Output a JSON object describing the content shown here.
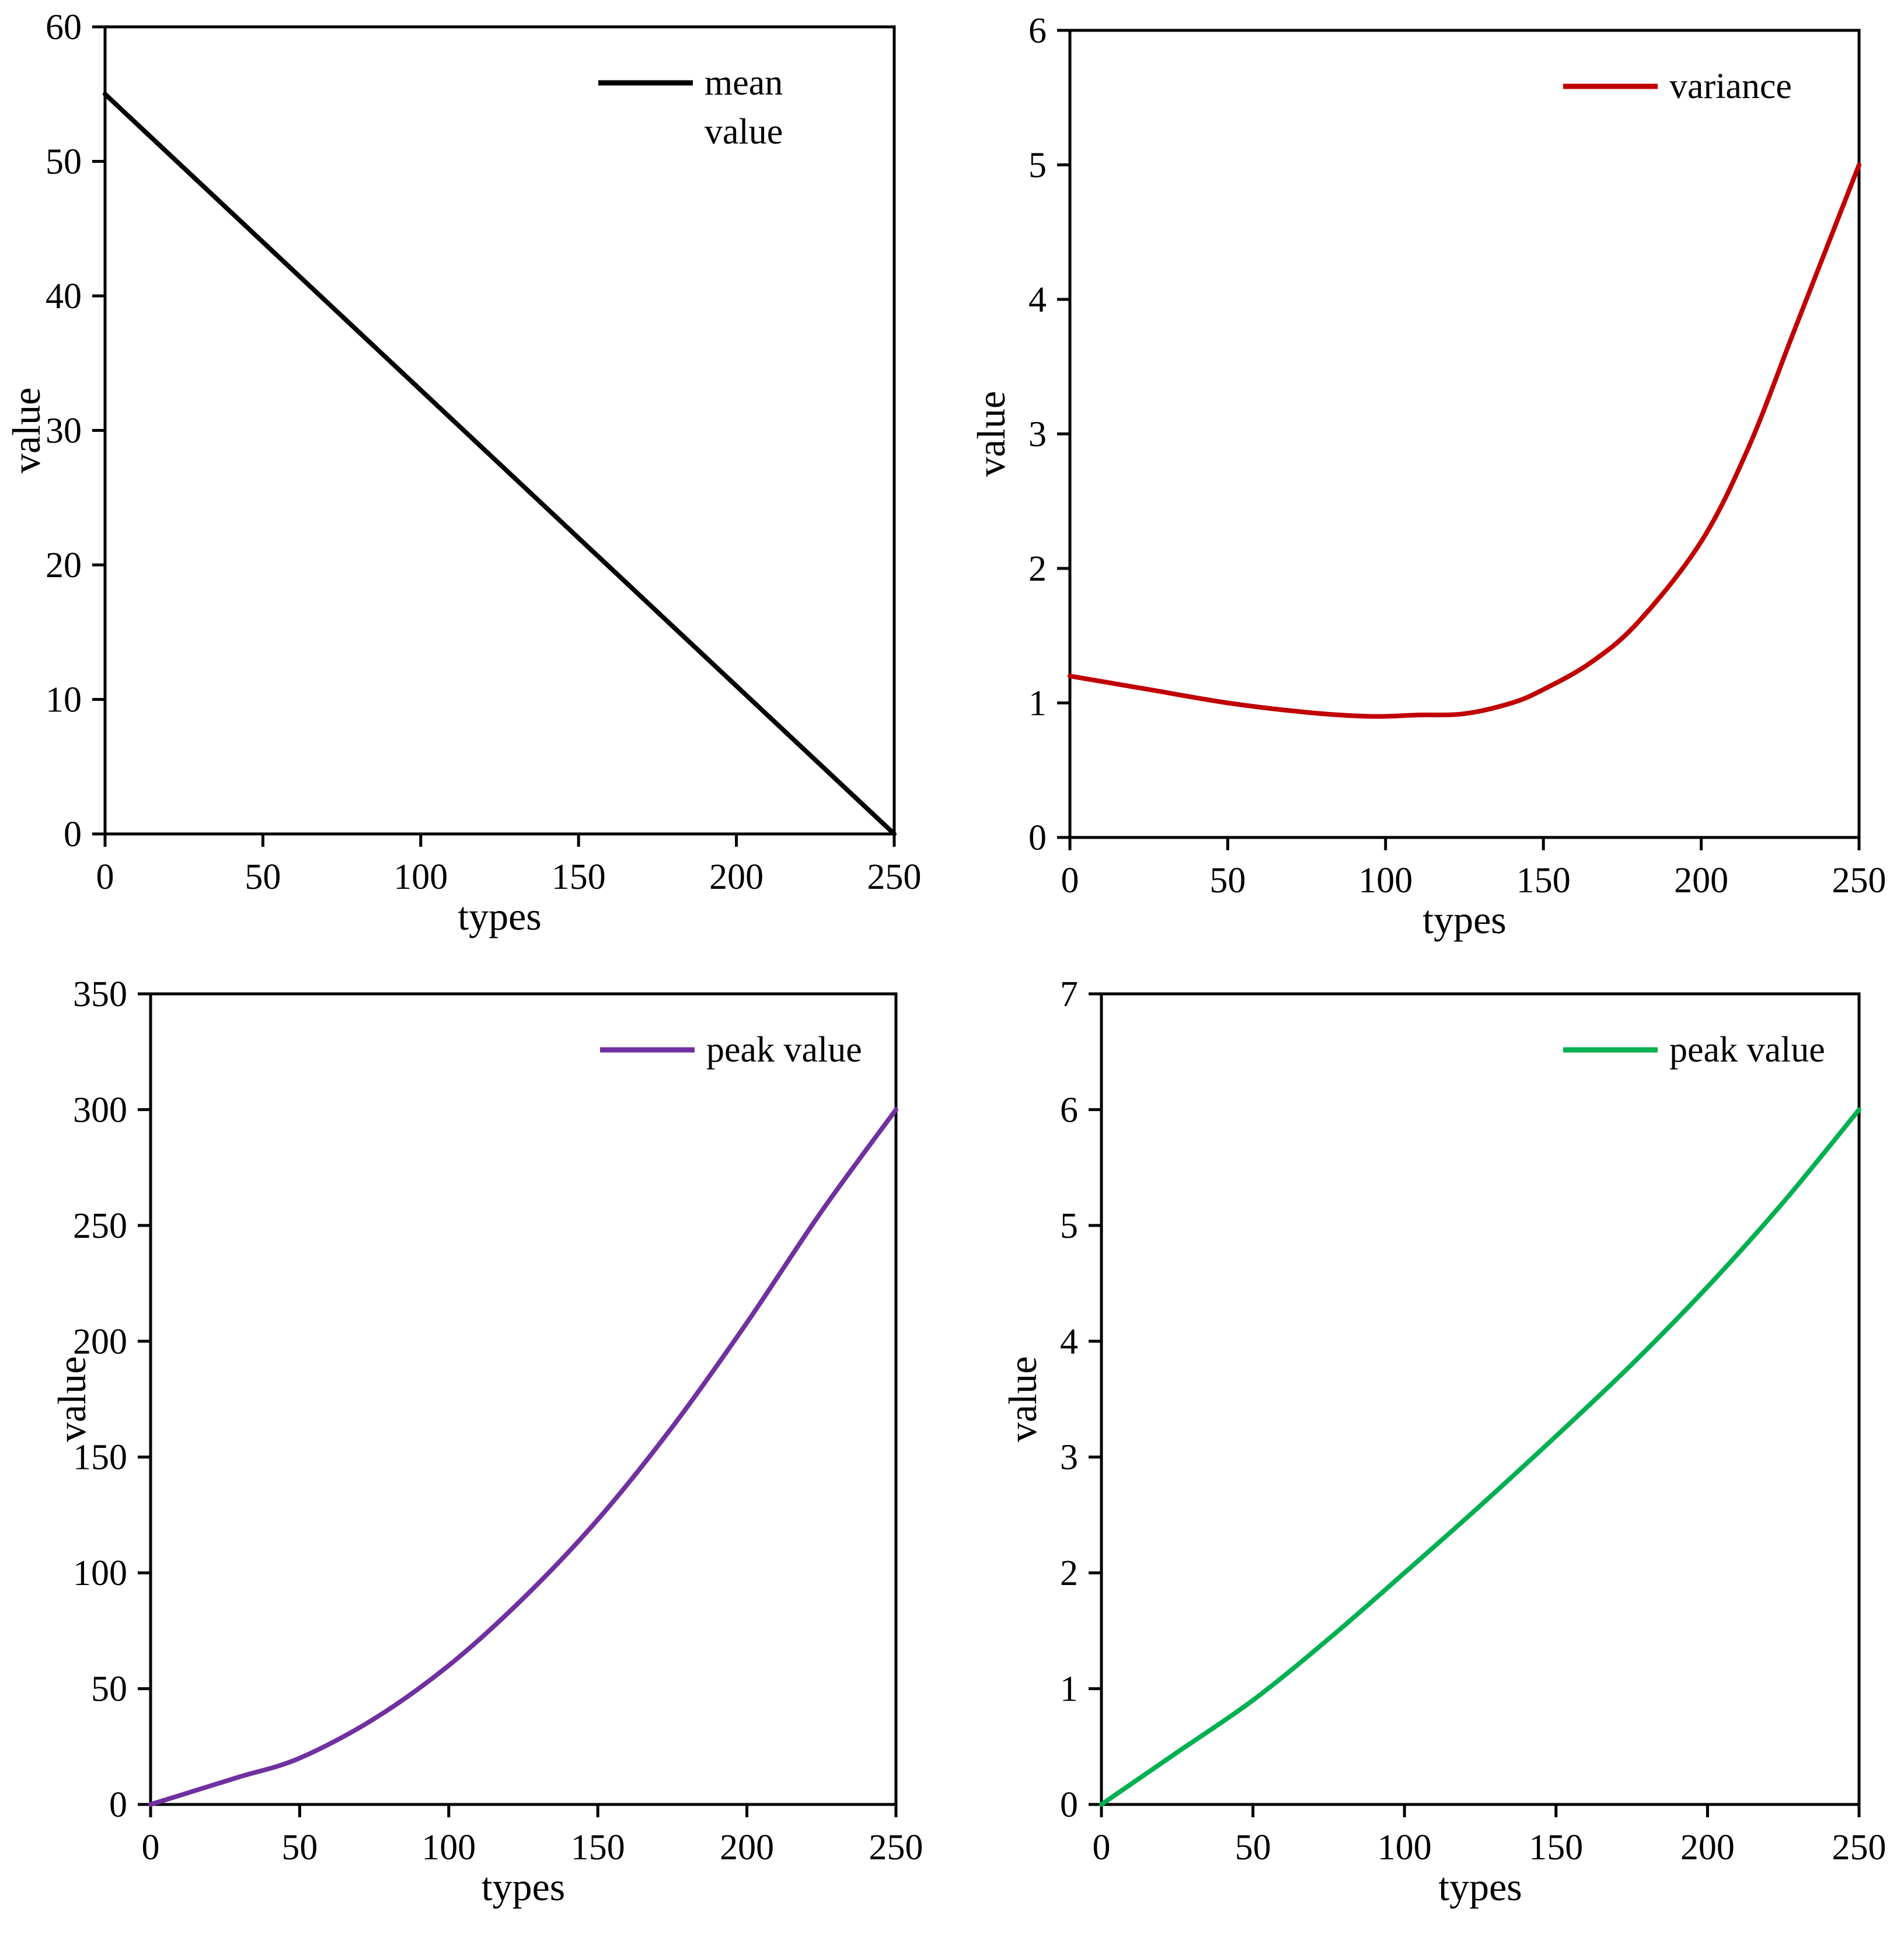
{
  "chart_data": [
    {
      "type": "line",
      "title": "",
      "xlabel": "types",
      "ylabel": "value",
      "xlim": [
        0,
        250
      ],
      "ylim": [
        0,
        60
      ],
      "xticks": [
        0,
        50,
        100,
        150,
        200,
        250
      ],
      "yticks": [
        0,
        10,
        20,
        30,
        40,
        50,
        60
      ],
      "grid": false,
      "legend_position": "top-right",
      "series": [
        {
          "name": "mean value",
          "legend_lines": [
            "mean",
            "value"
          ],
          "color": "#000000",
          "x": [
            0,
            25,
            50,
            75,
            100,
            125,
            150,
            175,
            200,
            225,
            250
          ],
          "y": [
            55,
            49.5,
            44,
            38.5,
            33,
            27.5,
            22,
            16.5,
            11,
            5.5,
            0
          ]
        }
      ]
    },
    {
      "type": "line",
      "title": "",
      "xlabel": "types",
      "ylabel": "value",
      "xlim": [
        0,
        250
      ],
      "ylim": [
        0,
        6
      ],
      "xticks": [
        0,
        50,
        100,
        150,
        200,
        250
      ],
      "yticks": [
        0,
        1,
        2,
        3,
        4,
        5,
        6
      ],
      "grid": false,
      "legend_position": "top-right",
      "series": [
        {
          "name": "variance",
          "legend_lines": [
            "variance"
          ],
          "color": "#c00000",
          "x": [
            0,
            25,
            50,
            75,
            95,
            110,
            125,
            140,
            150,
            165,
            180,
            200,
            215,
            230,
            250
          ],
          "y": [
            1.2,
            1.1,
            1.0,
            0.93,
            0.9,
            0.91,
            0.92,
            1.0,
            1.1,
            1.3,
            1.6,
            2.2,
            2.9,
            3.8,
            5.0
          ]
        }
      ]
    },
    {
      "type": "line",
      "title": "",
      "xlabel": "types",
      "ylabel": "value",
      "xlim": [
        0,
        250
      ],
      "ylim": [
        0,
        350
      ],
      "xticks": [
        0,
        50,
        100,
        150,
        200,
        250
      ],
      "yticks": [
        0,
        50,
        100,
        150,
        200,
        250,
        300,
        350
      ],
      "grid": false,
      "legend_position": "top-right",
      "series": [
        {
          "name": "peak value",
          "legend_lines": [
            "peak value"
          ],
          "color": "#7030a0",
          "x": [
            0,
            15,
            30,
            50,
            75,
            100,
            125,
            150,
            175,
            200,
            225,
            250
          ],
          "y": [
            0,
            6,
            12,
            20,
            37,
            60,
            89,
            123,
            163,
            208,
            256,
            300
          ]
        }
      ]
    },
    {
      "type": "line",
      "title": "",
      "xlabel": "types",
      "ylabel": "value",
      "xlim": [
        0,
        250
      ],
      "ylim": [
        0,
        7
      ],
      "xticks": [
        0,
        50,
        100,
        150,
        200,
        250
      ],
      "yticks": [
        0,
        1,
        2,
        3,
        4,
        5,
        6,
        7
      ],
      "grid": false,
      "legend_position": "top-right",
      "series": [
        {
          "name": "peak value",
          "legend_lines": [
            "peak value"
          ],
          "color": "#00b050",
          "x": [
            0,
            25,
            50,
            75,
            100,
            125,
            150,
            175,
            200,
            225,
            250
          ],
          "y": [
            0,
            0.45,
            0.9,
            1.43,
            2.0,
            2.58,
            3.18,
            3.8,
            4.47,
            5.2,
            6.0
          ]
        }
      ]
    }
  ]
}
